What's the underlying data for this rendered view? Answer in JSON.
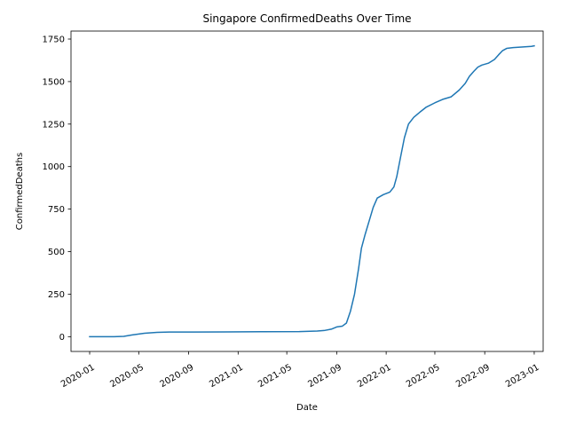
{
  "chart_data": {
    "type": "line",
    "title": "Singapore  ConfirmedDeaths Over Time",
    "xlabel": "Date",
    "ylabel": "ConfirmedDeaths",
    "xlim": [
      "2019-11-16",
      "2023-01-23"
    ],
    "ylim": [
      -87,
      1797
    ],
    "x_ticks": [
      "2020-01",
      "2020-05",
      "2020-09",
      "2021-01",
      "2021-05",
      "2021-09",
      "2022-01",
      "2022-05",
      "2022-09",
      "2023-01"
    ],
    "y_ticks": [
      0,
      250,
      500,
      750,
      1000,
      1250,
      1500,
      1750
    ],
    "grid": false,
    "legend": "none",
    "color": "#1f77b4",
    "series": [
      {
        "x": [
          "2020-01-01",
          "2020-02-01",
          "2020-03-01",
          "2020-03-25",
          "2020-04-15",
          "2020-05-15",
          "2020-06-15",
          "2020-07-15",
          "2020-09-15",
          "2020-12-01",
          "2021-03-01",
          "2021-06-01",
          "2021-07-15",
          "2021-08-01",
          "2021-08-20",
          "2021-09-01",
          "2021-09-15",
          "2021-09-25",
          "2021-10-05",
          "2021-10-15",
          "2021-10-25",
          "2021-11-01",
          "2021-11-10",
          "2021-11-20",
          "2021-11-30",
          "2021-12-10",
          "2021-12-25",
          "2022-01-10",
          "2022-01-20",
          "2022-01-27",
          "2022-02-05",
          "2022-02-15",
          "2022-02-25",
          "2022-03-10",
          "2022-03-25",
          "2022-04-10",
          "2022-05-01",
          "2022-05-20",
          "2022-06-10",
          "2022-06-30",
          "2022-07-15",
          "2022-07-25",
          "2022-08-05",
          "2022-08-15",
          "2022-08-25",
          "2022-09-10",
          "2022-09-25",
          "2022-10-05",
          "2022-10-15",
          "2022-10-25",
          "2022-11-10",
          "2022-12-01",
          "2022-12-25",
          "2023-01-01"
        ],
        "y": [
          0,
          0,
          0,
          2,
          10,
          20,
          25,
          27,
          27,
          28,
          29,
          30,
          33,
          36,
          45,
          57,
          62,
          80,
          150,
          250,
          400,
          520,
          600,
          680,
          760,
          815,
          835,
          850,
          880,
          940,
          1050,
          1170,
          1250,
          1290,
          1320,
          1350,
          1375,
          1395,
          1410,
          1450,
          1490,
          1530,
          1560,
          1585,
          1597,
          1608,
          1630,
          1657,
          1682,
          1695,
          1700,
          1703,
          1707,
          1710
        ]
      }
    ]
  }
}
